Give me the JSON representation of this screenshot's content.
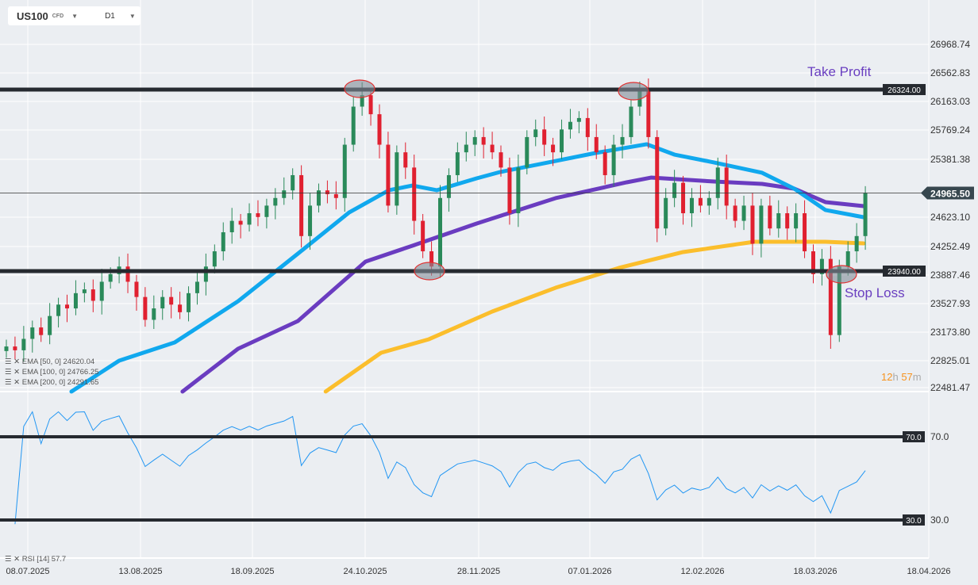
{
  "header": {
    "symbol": "US100",
    "type": "CFD",
    "timeframe": "D1"
  },
  "colors": {
    "up": "#2a8a5a",
    "down": "#e02030",
    "ema50": "#10a8ee",
    "ema100": "#6a3cc0",
    "ema200": "#fbbe2c",
    "rsi": "#2196f3",
    "level": "#262a30",
    "annot": "#6a3fc0"
  },
  "price_axis": [
    "26968.74",
    "26562.83",
    "26163.03",
    "25769.24",
    "25381.38",
    "24623.10",
    "24252.49",
    "23887.46",
    "23527.93",
    "23173.80",
    "22825.01",
    "22481.47"
  ],
  "current_price": "24965.50",
  "levels": {
    "take_profit": {
      "label": "Take Profit",
      "value": "26324.00"
    },
    "stop_loss": {
      "label": "Stop Loss",
      "value": "23940.00"
    }
  },
  "date_axis": [
    "08.07.2025",
    "13.08.2025",
    "18.09.2025",
    "24.10.2025",
    "28.11.2025",
    "07.01.2026",
    "12.02.2026",
    "18.03.2026",
    "18.04.2026"
  ],
  "legend": {
    "ema50": "EMA [50, 0] 24620.04",
    "ema100": "EMA [100, 0] 24766.25",
    "ema200": "EMA [200, 0] 24291.65",
    "rsi": "RSI [14] 57.7"
  },
  "timer": {
    "h": "12",
    "hl": "h",
    "m": "57",
    "ml": "m"
  },
  "rsi_levels": [
    "70.0",
    "30.0"
  ],
  "closes": [
    22950,
    22900,
    23050,
    23200,
    23100,
    23350,
    23500,
    23450,
    23650,
    23700,
    23550,
    23800,
    23900,
    24000,
    23800,
    23600,
    23300,
    23450,
    23600,
    23500,
    23400,
    23650,
    23800,
    24000,
    24200,
    24450,
    24600,
    24550,
    24700,
    24650,
    24800,
    24900,
    25000,
    25200,
    24400,
    24800,
    25000,
    24950,
    24900,
    25600,
    26100,
    26250,
    26000,
    25600,
    24800,
    25500,
    25300,
    24600,
    24200,
    24000,
    24900,
    25200,
    25500,
    25600,
    25700,
    25600,
    25500,
    25300,
    24700,
    25300,
    25700,
    25800,
    25600,
    25500,
    25800,
    25900,
    25950,
    25700,
    25500,
    25200,
    25600,
    25700,
    26100,
    26300,
    25700,
    24500,
    24900,
    25100,
    24700,
    24900,
    24800,
    24900,
    25300,
    24800,
    24600,
    24800,
    24300,
    24800,
    24500,
    24700,
    24500,
    24700,
    24200,
    23900,
    24100,
    23100,
    24000,
    24200,
    24400,
    24965.5
  ],
  "ema50": [
    [
      7.5,
      22358
    ],
    [
      13,
      22764
    ],
    [
      19.4,
      23003
    ],
    [
      26.7,
      23544
    ],
    [
      33.6,
      24169
    ],
    [
      39.5,
      24710
    ],
    [
      44.1,
      25002
    ],
    [
      46.8,
      25064
    ],
    [
      49.6,
      25002
    ],
    [
      54.2,
      25158
    ],
    [
      56.9,
      25241
    ],
    [
      62.4,
      25366
    ],
    [
      67.9,
      25491
    ],
    [
      73.8,
      25606
    ],
    [
      77,
      25470
    ],
    [
      81.6,
      25366
    ],
    [
      87.1,
      25231
    ],
    [
      90.8,
      25023
    ],
    [
      94.4,
      24742
    ],
    [
      98.8,
      24648
    ]
  ],
  "ema100": [
    [
      20.3,
      22358
    ],
    [
      26.7,
      22920
    ],
    [
      33.6,
      23284
    ],
    [
      41.4,
      24065
    ],
    [
      46.8,
      24273
    ],
    [
      54.2,
      24565
    ],
    [
      63.3,
      24898
    ],
    [
      71.5,
      25106
    ],
    [
      74.3,
      25168
    ],
    [
      81.6,
      25116
    ],
    [
      87.1,
      25085
    ],
    [
      90.8,
      25023
    ],
    [
      94.4,
      24846
    ],
    [
      98.8,
      24794
    ]
  ],
  "ema200": [
    [
      36.8,
      22358
    ],
    [
      43.2,
      22868
    ],
    [
      48.7,
      23045
    ],
    [
      56,
      23409
    ],
    [
      63.3,
      23721
    ],
    [
      70.6,
      23982
    ],
    [
      78,
      24190
    ],
    [
      86.2,
      24325
    ],
    [
      94.4,
      24325
    ],
    [
      98.8,
      24304
    ]
  ]
}
